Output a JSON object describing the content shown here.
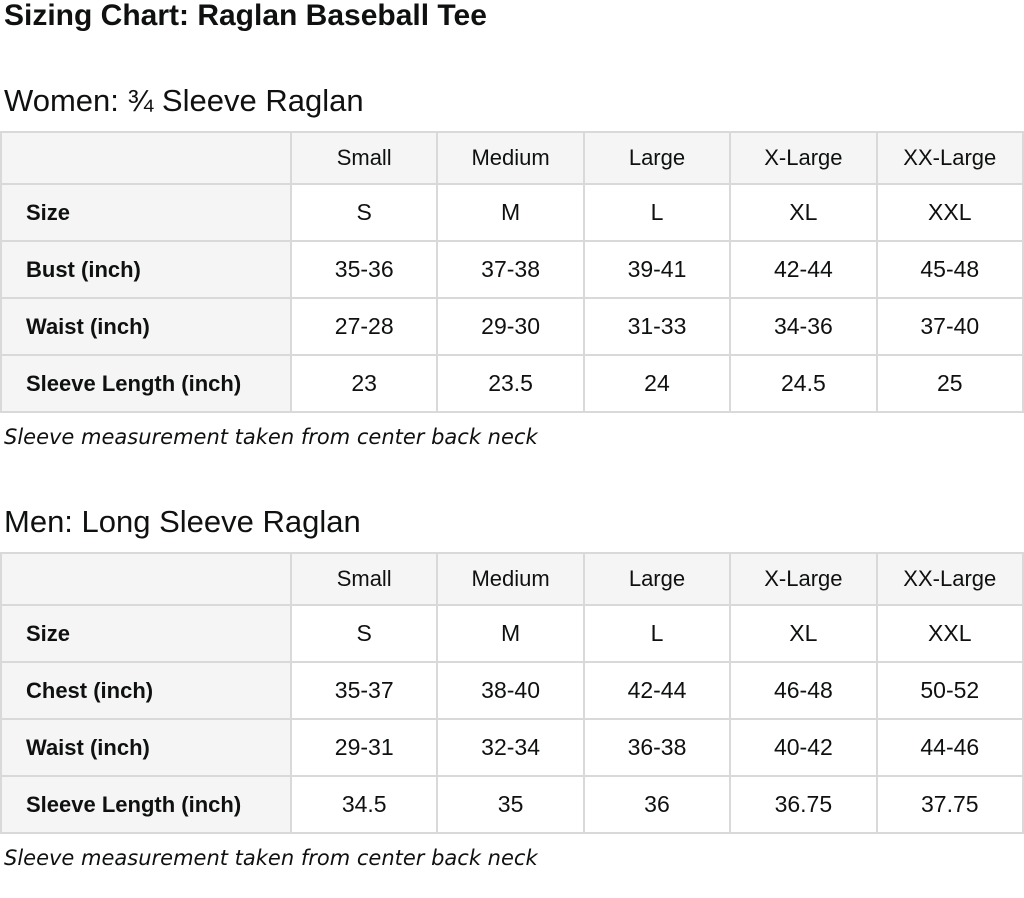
{
  "page": {
    "title": "Sizing Chart: Raglan Baseball Tee"
  },
  "colors": {
    "text": "#0f1111",
    "cell_bg": "#f5f5f5",
    "border": "#d9d9d9",
    "page_bg": "#ffffff"
  },
  "sections": [
    {
      "heading": "Women: ¾ Sleeve Raglan",
      "note": "Sleeve measurement taken from center back neck",
      "table": {
        "column_headers": [
          "",
          "Small",
          "Medium",
          "Large",
          "X-Large",
          "XX-Large"
        ],
        "rows": [
          {
            "label": "Size",
            "values": [
              "S",
              "M",
              "L",
              "XL",
              "XXL"
            ]
          },
          {
            "label": "Bust (inch)",
            "values": [
              "35-36",
              "37-38",
              "39-41",
              "42-44",
              "45-48"
            ]
          },
          {
            "label": "Waist (inch)",
            "values": [
              "27-28",
              "29-30",
              "31-33",
              "34-36",
              "37-40"
            ]
          },
          {
            "label": "Sleeve Length (inch)",
            "values": [
              "23",
              "23.5",
              "24",
              "24.5",
              "25"
            ]
          }
        ]
      }
    },
    {
      "heading": "Men: Long Sleeve Raglan",
      "note": "Sleeve measurement taken from center back neck",
      "table": {
        "column_headers": [
          "",
          "Small",
          "Medium",
          "Large",
          "X-Large",
          "XX-Large"
        ],
        "rows": [
          {
            "label": "Size",
            "values": [
              "S",
              "M",
              "L",
              "XL",
              "XXL"
            ]
          },
          {
            "label": "Chest (inch)",
            "values": [
              "35-37",
              "38-40",
              "42-44",
              "46-48",
              "50-52"
            ]
          },
          {
            "label": "Waist (inch)",
            "values": [
              "29-31",
              "32-34",
              "36-38",
              "40-42",
              "44-46"
            ]
          },
          {
            "label": "Sleeve Length (inch)",
            "values": [
              "34.5",
              "35",
              "36",
              "36.75",
              "37.75"
            ]
          }
        ]
      }
    }
  ]
}
